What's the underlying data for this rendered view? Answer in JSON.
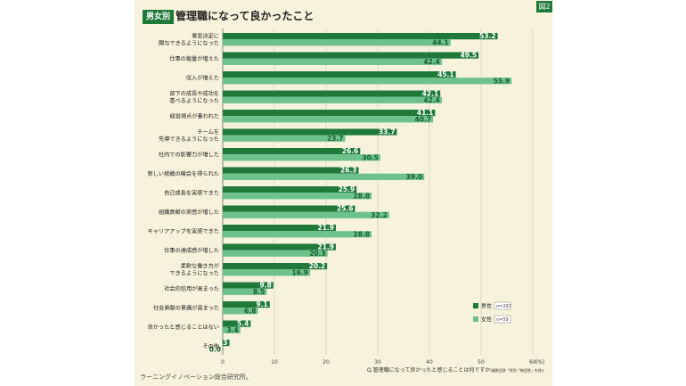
{
  "figure_label": "図2",
  "header": {
    "tag": "男女別",
    "title": "管理職になって良かったこと"
  },
  "source": "ラーニングイノベーション総合研究所。",
  "question": "Q.管理職になって良かったと感じることは何ですか",
  "question_note": "(複数回答「性別「無回答」を除く",
  "colors": {
    "male": "#1f7a3a",
    "female": "#6cc28a",
    "panel": "#f6f2dc",
    "grid": "#cfcab0"
  },
  "chart_data": {
    "type": "bar",
    "orientation": "horizontal",
    "categories": [
      "意思決定に\n関与できるようになった",
      "仕事の裁量が増えた",
      "収入が増えた",
      "部下の成長や成功を\n喜べるようになった",
      "経営視点が養われた",
      "チームを\n先導できるようになった",
      "社内での影響力が増した",
      "新しい挑戦の機会を得られた",
      "自己成長を実感できた",
      "組織貢献の実感が増した",
      "キャリアアップを実感できた",
      "仕事の達成感が増した",
      "柔軟な働き方が\nできるようになった",
      "社会的信用が高まった",
      "社会貢献の意識が高まった",
      "良かったと感じることはない",
      "その他"
    ],
    "series": [
      {
        "name": "男性",
        "n": "n=297",
        "values": [
          53.2,
          49.5,
          45.1,
          42.1,
          41.1,
          33.7,
          26.6,
          26.3,
          25.9,
          25.6,
          21.9,
          21.9,
          20.2,
          9.8,
          9.1,
          5.4,
          1.3
        ]
      },
      {
        "name": "女性",
        "n": "n=59",
        "values": [
          44.1,
          42.4,
          55.9,
          42.4,
          40.7,
          23.7,
          30.5,
          39.0,
          28.8,
          32.2,
          28.8,
          20.3,
          16.9,
          8.5,
          6.8,
          3.4,
          0.0
        ]
      }
    ],
    "x_ticks": [
      "0",
      "10",
      "20",
      "30",
      "40",
      "50",
      "60"
    ],
    "x_unit": "(%)",
    "xlim": [
      0,
      60
    ],
    "grid": true,
    "legend": "right"
  }
}
